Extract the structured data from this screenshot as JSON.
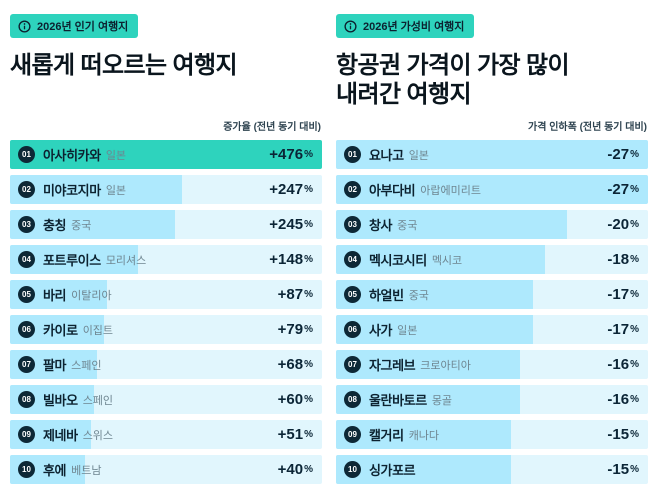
{
  "colors": {
    "badge_bg": "#2ed3bd",
    "highlight_bar": "#2ed3bd",
    "bar": "#aee9fd",
    "row_bg": "#e1f6fd",
    "rank_bg": "#0d2836",
    "text_dark": "#0c2230",
    "text_muted": "#6e8590"
  },
  "panels": [
    {
      "badge_label": "2026년 인기 여행지",
      "title_lines": [
        "새롭게 떠오르는 여행지"
      ],
      "metric_label": "증가율 (전년 동기 대비)",
      "items": [
        {
          "rank": "01",
          "name": "아사히카와",
          "country": "일본",
          "value": "+476",
          "unit": "%",
          "bar": 100,
          "highlight": true
        },
        {
          "rank": "02",
          "name": "미야코지마",
          "country": "일본",
          "value": "+247",
          "unit": "%",
          "bar": 55,
          "highlight": false
        },
        {
          "rank": "03",
          "name": "충칭",
          "country": "중국",
          "value": "+245",
          "unit": "%",
          "bar": 53,
          "highlight": false
        },
        {
          "rank": "04",
          "name": "포트루이스",
          "country": "모리셔스",
          "value": "+148",
          "unit": "%",
          "bar": 41,
          "highlight": false
        },
        {
          "rank": "05",
          "name": "바리",
          "country": "이탈리아",
          "value": "+87",
          "unit": "%",
          "bar": 31,
          "highlight": false
        },
        {
          "rank": "06",
          "name": "카이로",
          "country": "이집트",
          "value": "+79",
          "unit": "%",
          "bar": 30,
          "highlight": false
        },
        {
          "rank": "07",
          "name": "팔마",
          "country": "스페인",
          "value": "+68",
          "unit": "%",
          "bar": 28,
          "highlight": false
        },
        {
          "rank": "08",
          "name": "빌바오",
          "country": "스페인",
          "value": "+60",
          "unit": "%",
          "bar": 27,
          "highlight": false
        },
        {
          "rank": "09",
          "name": "제네바",
          "country": "스위스",
          "value": "+51",
          "unit": "%",
          "bar": 26,
          "highlight": false
        },
        {
          "rank": "10",
          "name": "후에",
          "country": "베트남",
          "value": "+40",
          "unit": "%",
          "bar": 24,
          "highlight": false
        }
      ]
    },
    {
      "badge_label": "2026년 가성비 여행지",
      "title_lines": [
        "항공권 가격이 가장 많이",
        "내려간 여행지"
      ],
      "metric_label": "가격 인하폭 (전년 동기 대비)",
      "items": [
        {
          "rank": "01",
          "name": "요나고",
          "country": "일본",
          "value": "-27",
          "unit": "%",
          "bar": 100,
          "highlight": false
        },
        {
          "rank": "02",
          "name": "아부다비",
          "country": "아랍에미리트",
          "value": "-27",
          "unit": "%",
          "bar": 100,
          "highlight": false
        },
        {
          "rank": "03",
          "name": "창사",
          "country": "중국",
          "value": "-20",
          "unit": "%",
          "bar": 74,
          "highlight": false
        },
        {
          "rank": "04",
          "name": "멕시코시티",
          "country": "멕시코",
          "value": "-18",
          "unit": "%",
          "bar": 67,
          "highlight": false
        },
        {
          "rank": "05",
          "name": "하얼빈",
          "country": "중국",
          "value": "-17",
          "unit": "%",
          "bar": 63,
          "highlight": false
        },
        {
          "rank": "06",
          "name": "사가",
          "country": "일본",
          "value": "-17",
          "unit": "%",
          "bar": 63,
          "highlight": false
        },
        {
          "rank": "07",
          "name": "자그레브",
          "country": "크로아티아",
          "value": "-16",
          "unit": "%",
          "bar": 59,
          "highlight": false
        },
        {
          "rank": "08",
          "name": "울란바토르",
          "country": "몽골",
          "value": "-16",
          "unit": "%",
          "bar": 59,
          "highlight": false
        },
        {
          "rank": "09",
          "name": "캘거리",
          "country": "캐나다",
          "value": "-15",
          "unit": "%",
          "bar": 56,
          "highlight": false
        },
        {
          "rank": "10",
          "name": "싱가포르",
          "country": "",
          "value": "-15",
          "unit": "%",
          "bar": 56,
          "highlight": false
        }
      ]
    }
  ],
  "chart_data": [
    {
      "type": "bar",
      "title": "새롭게 떠오르는 여행지",
      "subtitle": "2026년 인기 여행지",
      "value_label": "증가율 (전년 동기 대비)",
      "categories": [
        "아사히카와 (일본)",
        "미야코지마 (일본)",
        "충칭 (중국)",
        "포트루이스 (모리셔스)",
        "바리 (이탈리아)",
        "카이로 (이집트)",
        "팔마 (스페인)",
        "빌바오 (스페인)",
        "제네바 (스위스)",
        "후에 (베트남)"
      ],
      "values": [
        476,
        247,
        245,
        148,
        87,
        79,
        68,
        60,
        51,
        40
      ],
      "unit": "%",
      "orientation": "horizontal",
      "legend": "off",
      "grid": "off"
    },
    {
      "type": "bar",
      "title": "항공권 가격이 가장 많이 내려간 여행지",
      "subtitle": "2026년 가성비 여행지",
      "value_label": "가격 인하폭 (전년 동기 대비)",
      "categories": [
        "요나고 (일본)",
        "아부다비 (아랍에미리트)",
        "창사 (중국)",
        "멕시코시티 (멕시코)",
        "하얼빈 (중국)",
        "사가 (일본)",
        "자그레브 (크로아티아)",
        "울란바토르 (몽골)",
        "캘거리 (캐나다)",
        "싱가포르"
      ],
      "values": [
        -27,
        -27,
        -20,
        -18,
        -17,
        -17,
        -16,
        -16,
        -15,
        -15
      ],
      "unit": "%",
      "orientation": "horizontal",
      "legend": "off",
      "grid": "off"
    }
  ]
}
